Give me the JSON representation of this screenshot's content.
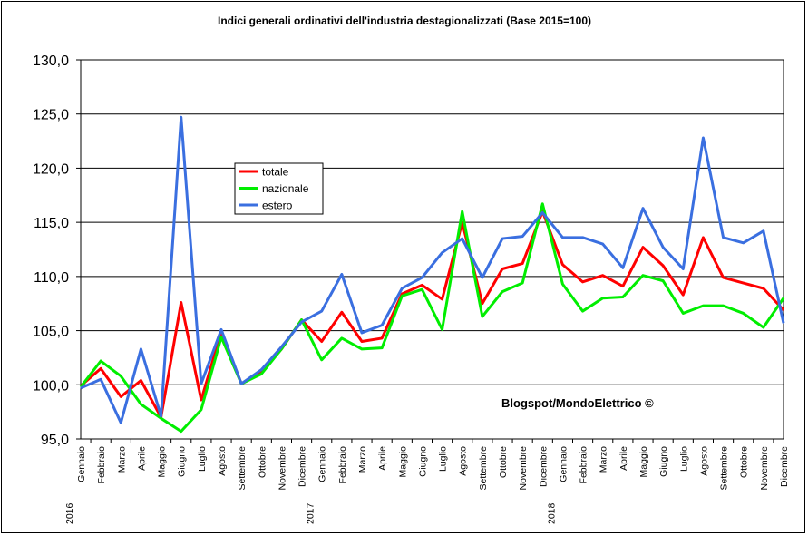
{
  "chart_data": {
    "type": "line",
    "title": "Indici generali ordinativi dell'industria destagionalizzati (Base 2015=100)",
    "xlabel": "",
    "ylabel": "",
    "ylim": [
      95,
      130
    ],
    "ytick_labels": [
      "95,0",
      "100,0",
      "105,0",
      "110,0",
      "115,0",
      "120,0",
      "125,0",
      "130,0"
    ],
    "categories": [
      "Gennaio",
      "Febbraio",
      "Marzo",
      "Aprile",
      "Maggio",
      "Giugno",
      "Luglio",
      "Agosto",
      "Settembre",
      "Ottobre",
      "Novembre",
      "Dicembre",
      "Gennaio",
      "Febbraio",
      "Marzo",
      "Aprile",
      "Maggio",
      "Giugno",
      "Luglio",
      "Agosto",
      "Settembre",
      "Ottobre",
      "Novembre",
      "Dicembre",
      "Gennaio",
      "Febbraio",
      "Marzo",
      "Aprile",
      "Maggio",
      "Giugno",
      "Luglio",
      "Agosto",
      "Settembre",
      "Ottobre",
      "Novembre",
      "Dicembre"
    ],
    "year_labels": [
      {
        "index": 0,
        "label": "2016"
      },
      {
        "index": 12,
        "label": "2017"
      },
      {
        "index": 24,
        "label": "2018"
      }
    ],
    "series": [
      {
        "name": "totale",
        "color": "#ff0000",
        "values": [
          99.9,
          101.5,
          98.9,
          100.4,
          97.0,
          107.6,
          98.6,
          104.9,
          100.1,
          101.2,
          103.3,
          106.0,
          104.0,
          106.7,
          104.0,
          104.3,
          108.4,
          109.2,
          107.9,
          115.0,
          107.5,
          110.7,
          111.2,
          116.0,
          111.1,
          109.5,
          110.1,
          109.1,
          112.7,
          111.0,
          108.3,
          113.6,
          109.9,
          109.4,
          108.9,
          106.9
        ]
      },
      {
        "name": "nazionale",
        "color": "#00ee00",
        "values": [
          99.8,
          102.2,
          100.8,
          98.2,
          96.9,
          95.7,
          97.7,
          104.4,
          100.1,
          101.0,
          103.3,
          106.0,
          102.3,
          104.3,
          103.3,
          103.4,
          108.2,
          108.8,
          105.1,
          116.0,
          106.3,
          108.6,
          109.4,
          116.7,
          109.3,
          106.8,
          108.0,
          108.1,
          110.1,
          109.6,
          106.6,
          107.3,
          107.3,
          106.6,
          105.3,
          108.0
        ]
      },
      {
        "name": "estero",
        "color": "#3a6fe0",
        "values": [
          99.7,
          100.5,
          96.5,
          103.3,
          97.1,
          124.7,
          100.1,
          105.1,
          100.1,
          101.4,
          103.5,
          105.8,
          106.8,
          110.2,
          104.8,
          105.5,
          108.9,
          109.9,
          112.2,
          113.5,
          109.9,
          113.5,
          113.7,
          115.9,
          113.6,
          113.6,
          113.0,
          110.8,
          116.3,
          112.7,
          110.7,
          122.8,
          113.6,
          113.1,
          114.2,
          105.7
        ]
      }
    ],
    "legend_position": "upper-left",
    "annotation": "Blogspot/MondoElettrico ©"
  }
}
